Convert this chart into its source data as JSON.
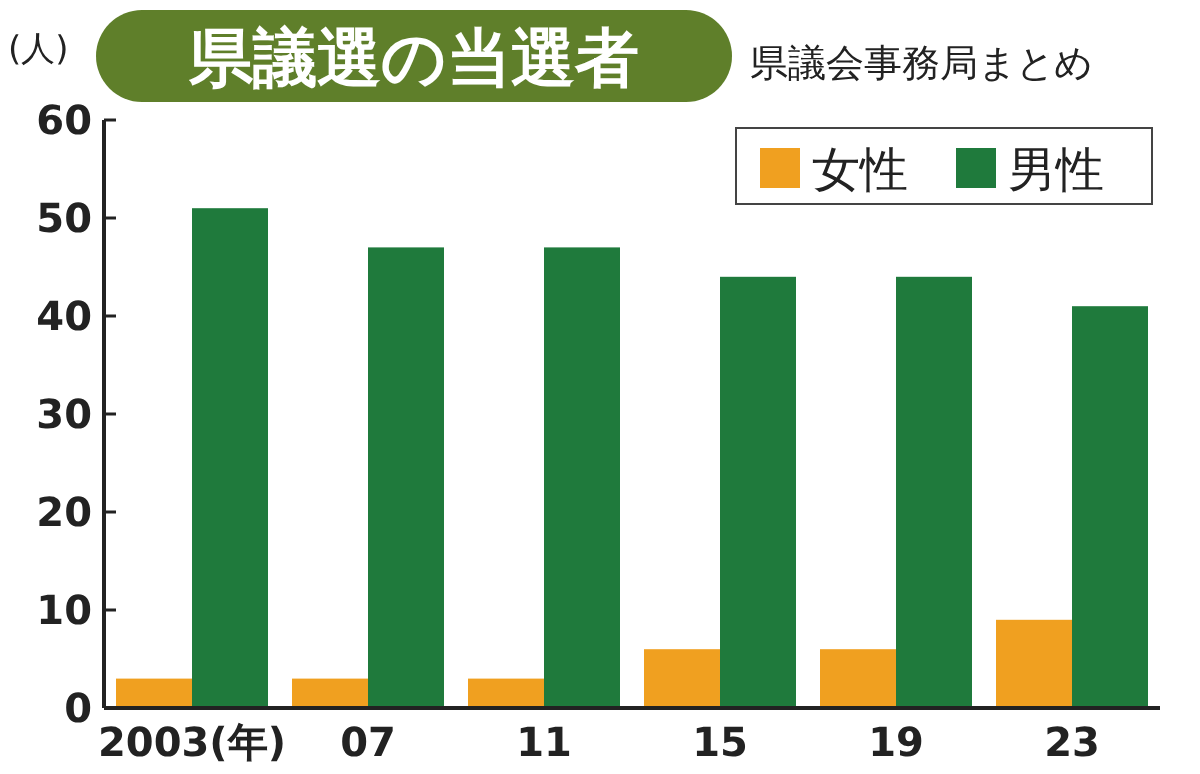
{
  "chart_data": {
    "type": "bar",
    "title": "県議選の当選者",
    "subtitle": "県議会事務局まとめ",
    "ylabel": "(人)",
    "categories": [
      "2003(年)",
      "07",
      "11",
      "15",
      "19",
      "23"
    ],
    "series": [
      {
        "name": "女性",
        "color": "#f0a020",
        "values": [
          3,
          3,
          3,
          6,
          6,
          9
        ]
      },
      {
        "name": "男性",
        "color": "#1f7a3c",
        "values": [
          51,
          47,
          47,
          44,
          44,
          41
        ]
      }
    ],
    "ylim": [
      0,
      60
    ],
    "yticks": [
      0,
      10,
      20,
      30,
      40,
      50,
      60
    ],
    "legend": "top right"
  }
}
